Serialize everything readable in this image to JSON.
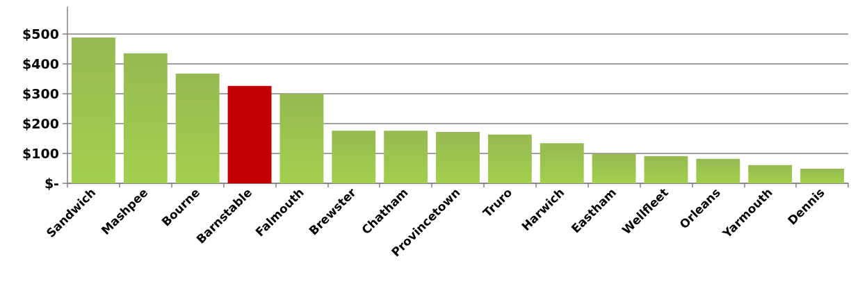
{
  "chart_data": {
    "type": "bar",
    "categories": [
      "Sandwich",
      "Mashpee",
      "Bourne",
      "Barnstable",
      "Falmouth",
      "Brewster",
      "Chatham",
      "Provincetown",
      "Truro",
      "Harwich",
      "Eastham",
      "Wellfleet",
      "Orleans",
      "Yarmouth",
      "Dennis"
    ],
    "values": [
      488,
      435,
      367,
      326,
      299,
      176,
      176,
      172,
      163,
      134,
      99,
      91,
      82,
      61,
      49
    ],
    "colors": [
      "#8db544",
      "#8db544",
      "#8db544",
      "#c00000",
      "#8db544",
      "#8db544",
      "#8db544",
      "#8db544",
      "#8db544",
      "#8db544",
      "#8db544",
      "#8db544",
      "#8db544",
      "#8db544",
      "#8db544"
    ],
    "ylim": [
      0,
      590
    ],
    "yticks": [
      {
        "value": 0,
        "label": "$-"
      },
      {
        "value": 100,
        "label": "$100"
      },
      {
        "value": 200,
        "label": "$200"
      },
      {
        "value": 300,
        "label": "$300"
      },
      {
        "value": 400,
        "label": "$400"
      },
      {
        "value": 500,
        "label": "$500"
      }
    ],
    "grid": "y"
  }
}
